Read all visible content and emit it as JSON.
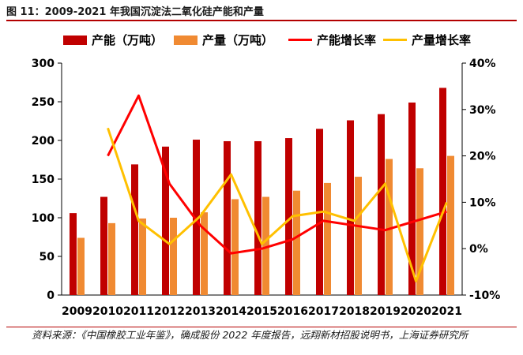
{
  "figure": {
    "title": "图 11：2009-2021 年我国沉淀法二氧化硅产能和产量",
    "source": "资料来源：《中国橡胶工业年鉴》，确成股份 2022 年度报告，远翔新材招股说明书，上海证券研究所"
  },
  "colors": {
    "capacity_bar": "#c00000",
    "output_bar": "#f08a32",
    "capacity_growth_line": "#ff0000",
    "output_growth_line": "#ffc000",
    "accent_rule": "#b30000"
  },
  "chart_data": {
    "type": "bar",
    "categories": [
      "2009",
      "2010",
      "2011",
      "2012",
      "2013",
      "2014",
      "2015",
      "2016",
      "2017",
      "2018",
      "2019",
      "2020",
      "2021"
    ],
    "series": [
      {
        "name": "产能（万吨）",
        "kind": "bar",
        "axis": "left",
        "values": [
          106,
          127,
          169,
          192,
          201,
          199,
          199,
          203,
          215,
          226,
          234,
          249,
          268
        ]
      },
      {
        "name": "产量（万吨）",
        "kind": "bar",
        "axis": "left",
        "values": [
          74,
          93,
          99,
          100,
          107,
          124,
          127,
          135,
          145,
          153,
          176,
          164,
          180
        ]
      },
      {
        "name": "产能增长率",
        "kind": "line",
        "axis": "right",
        "values": [
          null,
          20,
          33,
          14,
          5,
          -1,
          0,
          2,
          6,
          5,
          4,
          6,
          8
        ]
      },
      {
        "name": "产量增长率",
        "kind": "line",
        "axis": "right",
        "values": [
          null,
          26,
          6,
          1,
          7,
          16,
          1,
          7,
          8,
          6,
          14,
          -7,
          10
        ]
      }
    ],
    "y_left": {
      "ylim": [
        0,
        300
      ],
      "ticks": [
        "0",
        "50",
        "100",
        "150",
        "200",
        "250",
        "300"
      ]
    },
    "y_right": {
      "ylim": [
        -10,
        40
      ],
      "ticks": [
        "-10%",
        "0%",
        "10%",
        "20%",
        "30%",
        "40%"
      ]
    },
    "grid": false,
    "legend_position": "top"
  }
}
